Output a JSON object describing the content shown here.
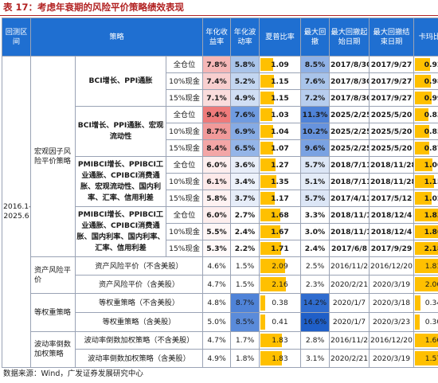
{
  "title": "表 17：考虑年衰期的风险平价策略绩效表现",
  "source": "数据来源：Wind，广发证券发展研究中心",
  "headers": {
    "period": "回测区间",
    "strategy": "策略",
    "annual_return": "年化收益率",
    "annual_vol": "年化波动率",
    "sharpe": "夏普比率",
    "max_dd": "最大回撤",
    "dd_start": "最大回撤起始日期",
    "dd_end": "最大回撤结束日期",
    "calmar": "卡玛比率"
  },
  "period": "2016.1-2025.6",
  "groups": [
    {
      "label": "宏观因子风险平价策略"
    },
    {
      "label": "资产风险平价"
    },
    {
      "label": "等权重策略"
    },
    {
      "label": "波动率倒数加权策略"
    }
  ],
  "rows": [
    {
      "strategy": "BCI增长、PPI通胀",
      "position": "全仓位",
      "ret": "7.8%",
      "vol": "5.8%",
      "sharpe": "1.09",
      "sharpe_v": 1.09,
      "dd": "8.5%",
      "start": "2017/8/30",
      "end": "2017/9/27",
      "calmar": "0.92",
      "calmar_v": 0.92,
      "ret_bg": "#f5b7b7",
      "vol_bg": "#a9c4ea",
      "dd_bg": "#8fb1e6",
      "bold": true
    },
    {
      "strategy": "",
      "position": "10%现金",
      "ret": "7.4%",
      "vol": "5.2%",
      "sharpe": "1.15",
      "sharpe_v": 1.15,
      "dd": "7.6%",
      "start": "2017/8/30",
      "end": "2017/9/27",
      "calmar": "0.98",
      "calmar_v": 0.98,
      "ret_bg": "#f8cfcf",
      "vol_bg": "#c3d6f1",
      "dd_bg": "#a9c4ea",
      "bold": true
    },
    {
      "strategy": "",
      "position": "15%现金",
      "ret": "7.1%",
      "vol": "4.9%",
      "sharpe": "1.15",
      "sharpe_v": 1.15,
      "dd": "7.2%",
      "start": "2017/8/30",
      "end": "2017/9/27",
      "calmar": "0.99",
      "calmar_v": 0.99,
      "ret_bg": "#fadcdc",
      "vol_bg": "#d0def4",
      "dd_bg": "#b7cdee",
      "bold": true
    },
    {
      "strategy": "BCI增长、PPI通胀、宏观流动性",
      "position": "全仓位",
      "ret": "9.4%",
      "vol": "7.6%",
      "sharpe": "1.03",
      "sharpe_v": 1.03,
      "dd": "11.3%",
      "start": "2025/2/25",
      "end": "2025/5/20",
      "calmar": "0.83",
      "calmar_v": 0.83,
      "ret_bg": "#ee7b7b",
      "vol_bg": "#6f9be0",
      "dd_bg": "#4f83d8",
      "bold": true
    },
    {
      "strategy": "",
      "position": "10%现金",
      "ret": "8.7%",
      "vol": "6.9%",
      "sharpe": "1.04",
      "sharpe_v": 1.04,
      "dd": "10.2%",
      "start": "2025/2/25",
      "end": "2025/5/20",
      "calmar": "0.85",
      "calmar_v": 0.85,
      "ret_bg": "#f19a9a",
      "vol_bg": "#86abe4",
      "dd_bg": "#6793dd",
      "bold": true
    },
    {
      "strategy": "",
      "position": "15%现金",
      "ret": "8.4%",
      "vol": "6.5%",
      "sharpe": "1.07",
      "sharpe_v": 1.07,
      "dd": "9.6%",
      "start": "2025/2/25",
      "end": "2025/5/20",
      "calmar": "0.87",
      "calmar_v": 0.87,
      "ret_bg": "#f3a6a6",
      "vol_bg": "#94b5e8",
      "dd_bg": "#7aa2e2",
      "bold": true
    },
    {
      "strategy": "PMIBCI增长、PPIBCI工业通胀、CPIBCI消费通胀、宏观流动性、国内利率、汇率、信用利差",
      "position": "全仓位",
      "ret": "6.0%",
      "vol": "3.6%",
      "sharpe": "1.27",
      "sharpe_v": 1.27,
      "dd": "5.7%",
      "start": "2018/7/11",
      "end": "2018/11/28",
      "calmar": "1.06",
      "calmar_v": 1.06,
      "ret_bg": "#fdeeee",
      "vol_bg": "#e8eef9",
      "dd_bg": "#dce6f6",
      "bold": true
    },
    {
      "strategy": "",
      "position": "10%现金",
      "ret": "6.1%",
      "vol": "3.4%",
      "sharpe": "1.35",
      "sharpe_v": 1.35,
      "dd": "5.1%",
      "start": "2018/7/11",
      "end": "2018/11/28",
      "calmar": "1.15",
      "calmar_v": 1.15,
      "ret_bg": "#fdeaea",
      "vol_bg": "#edf2fb",
      "dd_bg": "#e4ecf8",
      "bold": true
    },
    {
      "strategy": "",
      "position": "15%现金",
      "ret": "5.8%",
      "vol": "3.7%",
      "sharpe": "1.17",
      "sharpe_v": 1.17,
      "dd": "5.7%",
      "start": "2017/4/11",
      "end": "2017/5/12",
      "calmar": "1.02",
      "calmar_v": 1.02,
      "ret_bg": "#fef2f2",
      "vol_bg": "#e6edf9",
      "dd_bg": "#dce6f6",
      "bold": true
    },
    {
      "strategy": "PMIBCI增长、PPIBCI工业通胀、CPIBCI消费通胀、国内利率、国内利率、汇率、信用利差",
      "position": "全仓位",
      "ret": "6.0%",
      "vol": "2.7%",
      "sharpe": "1.68",
      "sharpe_v": 1.68,
      "dd": "3.3%",
      "start": "2018/11/19",
      "end": "2018/12/4",
      "calmar": "1.83",
      "calmar_v": 1.83,
      "ret_bg": "#fdeeee",
      "vol_bg": "#ffffff",
      "dd_bg": "#ffffff",
      "bold": true
    },
    {
      "strategy": "",
      "position": "10%现金",
      "ret": "5.5%",
      "vol": "2.4%",
      "sharpe": "1.67",
      "sharpe_v": 1.67,
      "dd": "3.0%",
      "start": "2018/11/19",
      "end": "2018/12/4",
      "calmar": "1.86",
      "calmar_v": 1.86,
      "ret_bg": "#fef6f6",
      "vol_bg": "#ffffff",
      "dd_bg": "#ffffff",
      "bold": true
    },
    {
      "strategy": "",
      "position": "15%现金",
      "ret": "5.3%",
      "vol": "2.2%",
      "sharpe": "1.71",
      "sharpe_v": 1.71,
      "dd": "2.4%",
      "start": "2017/6/8",
      "end": "2017/9/29",
      "calmar": "2.18",
      "calmar_v": 2.18,
      "ret_bg": "#fff9f9",
      "vol_bg": "#ffffff",
      "dd_bg": "#ffffff",
      "bold": true
    },
    {
      "strategy": "资产风险平价（不含美股）",
      "position": "",
      "ret": "4.6%",
      "vol": "1.5%",
      "sharpe": "2.09",
      "sharpe_v": 2.09,
      "dd": "2.5%",
      "start": "2016/11/28",
      "end": "2016/12/20",
      "calmar": "1.81",
      "calmar_v": 1.81,
      "ret_bg": "#ffffff",
      "vol_bg": "#ffffff",
      "dd_bg": "#ffffff",
      "bold": false
    },
    {
      "strategy": "资产风险平价（含美股）",
      "position": "",
      "ret": "4.7%",
      "vol": "1.5%",
      "sharpe": "2.16",
      "sharpe_v": 2.16,
      "dd": "2.3%",
      "start": "2020/2/21",
      "end": "2020/3/19",
      "calmar": "2.06",
      "calmar_v": 2.06,
      "ret_bg": "#ffffff",
      "vol_bg": "#ffffff",
      "dd_bg": "#ffffff",
      "bold": false
    },
    {
      "strategy": "等权重策略（不含美股）",
      "position": "",
      "ret": "4.8%",
      "vol": "8.7%",
      "sharpe": "0.38",
      "sharpe_v": 0.38,
      "dd": "14.2%",
      "start": "2020/1/7",
      "end": "2020/3/18",
      "calmar": "0.34",
      "calmar_v": 0.34,
      "ret_bg": "#ffffff",
      "vol_bg": "#4f83d8",
      "dd_bg": "#2f6ccf",
      "bold": false
    },
    {
      "strategy": "等权重策略（含美股）",
      "position": "",
      "ret": "5.0%",
      "vol": "8.5%",
      "sharpe": "0.41",
      "sharpe_v": 0.41,
      "dd": "16.6%",
      "start": "2020/1/7",
      "end": "2020/3/23",
      "calmar": "0.30",
      "calmar_v": 0.3,
      "ret_bg": "#ffffff",
      "vol_bg": "#5a8bda",
      "dd_bg": "#1f5fc8",
      "bold": false
    },
    {
      "strategy": "波动率倒数加权策略（不含美股）",
      "position": "",
      "ret": "4.7%",
      "vol": "1.7%",
      "sharpe": "1.83",
      "sharpe_v": 1.83,
      "dd": "2.8%",
      "start": "2016/11/28",
      "end": "2016/12/20",
      "calmar": "1.66",
      "calmar_v": 1.66,
      "ret_bg": "#ffffff",
      "vol_bg": "#ffffff",
      "dd_bg": "#ffffff",
      "bold": false
    },
    {
      "strategy": "波动率倒数加权策略（含美股）",
      "position": "",
      "ret": "4.9%",
      "vol": "1.8%",
      "sharpe": "1.83",
      "sharpe_v": 1.83,
      "dd": "3.1%",
      "start": "2020/2/21",
      "end": "2020/3/19",
      "calmar": "1.57",
      "calmar_v": 1.57,
      "ret_bg": "#ffffff",
      "vol_bg": "#ffffff",
      "dd_bg": "#ffffff",
      "bold": false
    }
  ],
  "colors": {
    "header_bg": "#1f6fd1",
    "title_red": "#b22222",
    "bar_yellow": "#ffc000"
  }
}
